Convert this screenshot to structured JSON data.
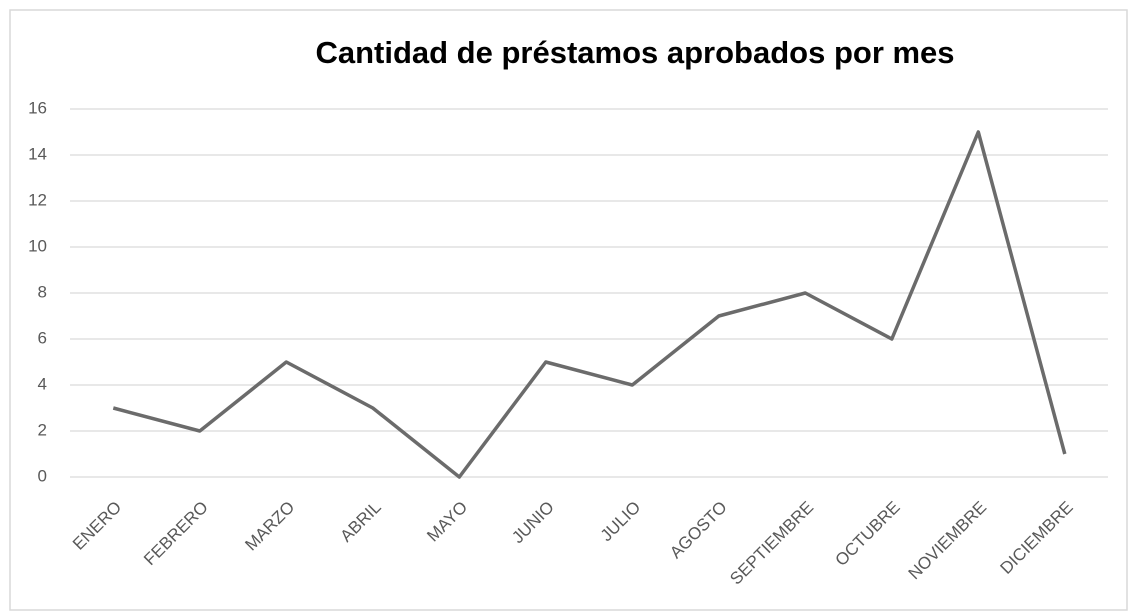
{
  "chart_data": {
    "type": "line",
    "title": "Cantidad de préstamos aprobados por mes",
    "categories": [
      "ENERO",
      "FEBRERO",
      "MARZO",
      "ABRIL",
      "MAYO",
      "JUNIO",
      "JULIO",
      "AGOSTO",
      "SEPTIEMBRE",
      "OCTUBRE",
      "NOVIEMBRE",
      "DICIEMBRE"
    ],
    "values": [
      3,
      2,
      5,
      3,
      0,
      5,
      4,
      7,
      8,
      6,
      15,
      1
    ],
    "color": "#6b6b6b",
    "ylim": [
      0,
      16
    ],
    "yticks": [
      0,
      2,
      4,
      6,
      8,
      10,
      12,
      14,
      16
    ],
    "grid": true
  }
}
